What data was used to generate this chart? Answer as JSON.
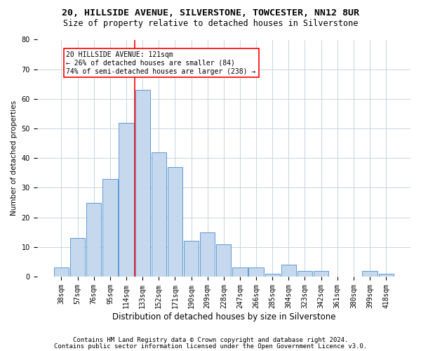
{
  "title1": "20, HILLSIDE AVENUE, SILVERSTONE, TOWCESTER, NN12 8UR",
  "title2": "Size of property relative to detached houses in Silverstone",
  "xlabel": "Distribution of detached houses by size in Silverstone",
  "ylabel": "Number of detached properties",
  "categories": [
    "38sqm",
    "57sqm",
    "76sqm",
    "95sqm",
    "114sqm",
    "133sqm",
    "152sqm",
    "171sqm",
    "190sqm",
    "209sqm",
    "228sqm",
    "247sqm",
    "266sqm",
    "285sqm",
    "304sqm",
    "323sqm",
    "342sqm",
    "361sqm",
    "380sqm",
    "399sqm",
    "418sqm"
  ],
  "values": [
    3,
    13,
    25,
    33,
    52,
    63,
    42,
    37,
    12,
    15,
    11,
    3,
    3,
    1,
    4,
    2,
    2,
    0,
    0,
    2,
    1
  ],
  "bar_color": "#c5d8ed",
  "bar_edge_color": "#5b9bd5",
  "red_line_index": 4,
  "annotation_line1": "20 HILLSIDE AVENUE: 121sqm",
  "annotation_line2": "← 26% of detached houses are smaller (84)",
  "annotation_line3": "74% of semi-detached houses are larger (238) →",
  "ylim": [
    0,
    80
  ],
  "yticks": [
    0,
    10,
    20,
    30,
    40,
    50,
    60,
    70,
    80
  ],
  "footer1": "Contains HM Land Registry data © Crown copyright and database right 2024.",
  "footer2": "Contains public sector information licensed under the Open Government Licence v3.0.",
  "bg_color": "#ffffff",
  "grid_color": "#c8d4e0",
  "title1_fontsize": 9.5,
  "title2_fontsize": 8.5,
  "xlabel_fontsize": 8.5,
  "ylabel_fontsize": 7.5,
  "tick_fontsize": 7,
  "annot_fontsize": 7,
  "footer_fontsize": 6.5
}
